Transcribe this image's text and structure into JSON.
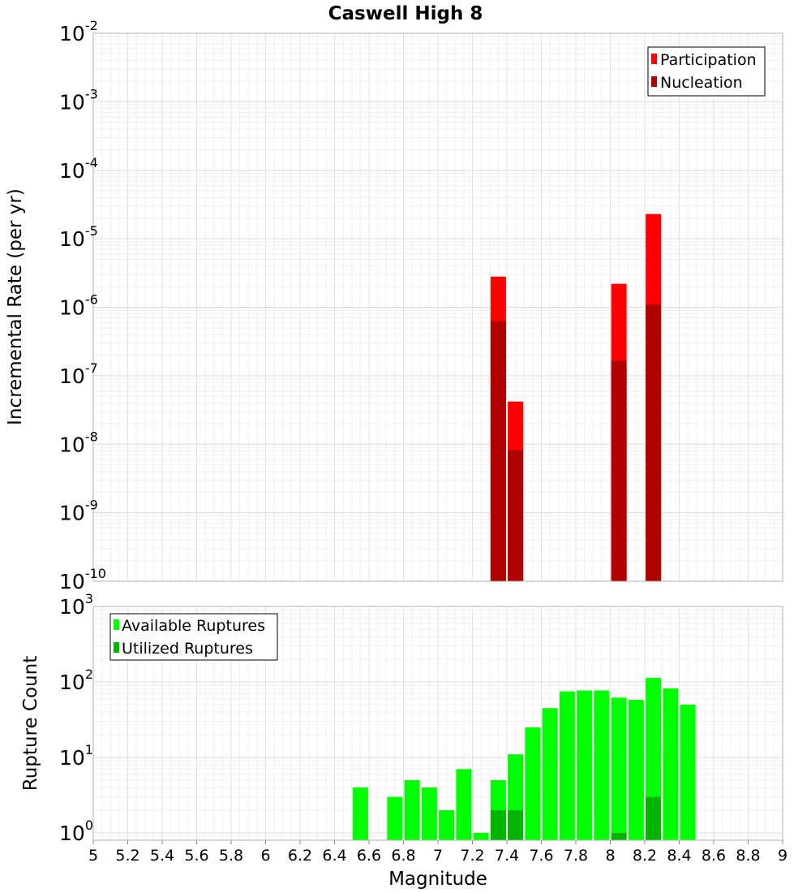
{
  "chart_data": [
    {
      "type": "bar",
      "title": "Caswell High 8",
      "xlabel": "",
      "ylabel": "Incremental Rate (per yr)",
      "yscale": "log",
      "ylim": [
        1e-10,
        0.01
      ],
      "xlim": [
        5,
        9
      ],
      "grid": true,
      "legend_position": "top-right",
      "y_tick_exponents": [
        "-10",
        "-9",
        "-8",
        "-7",
        "-6",
        "-5",
        "-4",
        "-3",
        "-2"
      ],
      "y_tick_base": "10",
      "series": [
        {
          "name": "Participation",
          "color": "#ff0000",
          "x": [
            7.35,
            7.45,
            8.05,
            8.25
          ],
          "values": [
            2.8e-06,
            4.2e-08,
            2.2e-06,
            2.3e-05
          ]
        },
        {
          "name": "Nucleation",
          "color": "#b00000",
          "x": [
            7.35,
            7.45,
            8.05,
            8.25
          ],
          "values": [
            6.3e-07,
            8.2e-09,
            1.65e-07,
            1.1e-06
          ]
        }
      ]
    },
    {
      "type": "bar",
      "title": "",
      "xlabel": "Magnitude",
      "ylabel": "Rupture Count",
      "yscale": "log",
      "ylim": [
        0.8,
        1000
      ],
      "xlim": [
        5,
        9
      ],
      "grid": true,
      "legend_position": "top-left",
      "y_tick_exponents": [
        "0",
        "1",
        "2",
        "3"
      ],
      "y_tick_base": "10",
      "x_tick_labels": [
        "5",
        "5.2",
        "5.4",
        "5.6",
        "5.8",
        "6",
        "6.2",
        "6.4",
        "6.6",
        "6.8",
        "7",
        "7.2",
        "7.4",
        "7.6",
        "7.8",
        "8",
        "8.2",
        "8.4",
        "8.6",
        "8.8",
        "9"
      ],
      "series": [
        {
          "name": "Available Ruptures",
          "color": "#00ff00",
          "x": [
            6.55,
            6.75,
            6.85,
            6.95,
            7.05,
            7.15,
            7.25,
            7.35,
            7.45,
            7.55,
            7.65,
            7.75,
            7.85,
            7.95,
            8.05,
            8.15,
            8.25,
            8.35,
            8.45
          ],
          "values": [
            4,
            3,
            5,
            4,
            2,
            7,
            1,
            5,
            11,
            25,
            45,
            75,
            77,
            77,
            62,
            58,
            113,
            82,
            50
          ]
        },
        {
          "name": "Utilized Ruptures",
          "color": "#00b400",
          "x": [
            7.35,
            7.45,
            8.05,
            8.25
          ],
          "values": [
            2,
            2,
            1,
            3
          ]
        }
      ]
    }
  ]
}
